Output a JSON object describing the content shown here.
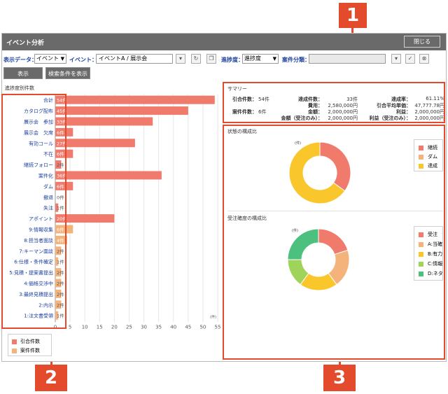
{
  "window": {
    "title": "イベント分析",
    "close_label": "閉じる"
  },
  "filters": {
    "display_data_label": "表示データ：",
    "display_data_value": "イベント",
    "event_label": "イベント：",
    "event_value": "イベントA / 展示会",
    "progress_label": "進捗度：",
    "progress_value": "進捗度",
    "case_category_label": "案件分類：",
    "case_category_value": ""
  },
  "actions": {
    "show_label": "表示",
    "show_conditions_label": "検索条件を表示"
  },
  "left_chart": {
    "section_title": "進捗度別件数",
    "legend": [
      {
        "name": "引合件数",
        "color": "#f07b6c"
      },
      {
        "name": "案件件数",
        "color": "#f5b37c"
      }
    ]
  },
  "chart_data": {
    "type": "bar",
    "orientation": "horizontal",
    "title": "進捗度別件数",
    "x_unit": "(件)",
    "xlim": [
      0,
      55
    ],
    "x_ticks": [
      0,
      5,
      10,
      15,
      20,
      25,
      30,
      35,
      40,
      45,
      50,
      55
    ],
    "grid": true,
    "legend_position": "bottom-left",
    "categories": [
      "合計",
      "カタログ配布",
      "展示会　参加",
      "展示会　欠席",
      "有効コール",
      "不在",
      "継続フォロー",
      "案件化",
      "ダム",
      "撤退",
      "失注",
      "アポイント",
      "9:情報収集",
      "8:担当者面談",
      "7:キーマン面談",
      "6:仕様・条件確定",
      "5:見積・提案書提出",
      "4:価格交渉中",
      "3:最終見積提出",
      "2:内示",
      "1:注文書受領"
    ],
    "series": [
      {
        "name": "引合件数",
        "color": "#f07b6c",
        "values": [
          54,
          45,
          33,
          6,
          27,
          6,
          2,
          36,
          6,
          0,
          1,
          20,
          0,
          0,
          0,
          0,
          0,
          0,
          0,
          0,
          0
        ]
      },
      {
        "name": "案件件数",
        "color": "#f5b37c",
        "values": [
          0,
          0,
          0,
          0,
          0,
          0,
          0,
          0,
          0,
          0,
          0,
          0,
          6,
          4,
          2,
          1,
          2,
          2,
          2,
          2,
          1
        ]
      }
    ],
    "data_labels": [
      "54件",
      "45件",
      "33件",
      "6件",
      "27件",
      "6件",
      "2件",
      "36件",
      "6件",
      "0件",
      "1件",
      "20件",
      "6件",
      "4件",
      "2件",
      "1件",
      "2件",
      "2件",
      "2件",
      "2件",
      "1件"
    ]
  },
  "summary": {
    "title": "サマリー",
    "items": [
      {
        "label": "引合件数：",
        "value": "54件"
      },
      {
        "label": "案件件数：",
        "value": "6件"
      },
      {
        "label": "達成件数：",
        "value": "33件"
      },
      {
        "label": "費用：",
        "value": "2,580,000円"
      },
      {
        "label": "金額：",
        "value": "2,000,000円"
      },
      {
        "label": "金額（受注のみ）：",
        "value": "2,000,000円"
      },
      {
        "label": "達成率：",
        "value": "61.11%"
      },
      {
        "label": "引合平均単価：",
        "value": "47,777.78円"
      },
      {
        "label": "利益：",
        "value": "2,000,000円"
      },
      {
        "label": "利益（受注のみ）：",
        "value": "2,000,000円"
      }
    ]
  },
  "status_pie": {
    "title": "状態の構成比",
    "unit": "(件)",
    "type": "donut",
    "slices": [
      {
        "name": "継続",
        "value": 35,
        "color": "#f07b6c"
      },
      {
        "name": "ダム",
        "value": 0,
        "color": "#f5b37c"
      },
      {
        "name": "達成",
        "value": 65,
        "color": "#f9c62b"
      }
    ],
    "legend_position": "right"
  },
  "order_pie": {
    "title": "受注確度の構成比",
    "unit": "(件)",
    "type": "donut",
    "slices": [
      {
        "name": "受注",
        "value": 20,
        "color": "#f07b6c"
      },
      {
        "name": "A:当確",
        "value": 20,
        "color": "#f5b37c"
      },
      {
        "name": "B:有力",
        "value": 20,
        "color": "#f9c62b"
      },
      {
        "name": "C:情報",
        "value": 15,
        "color": "#9fd35a"
      },
      {
        "name": "D:ネタ",
        "value": 25,
        "color": "#4cc07e"
      }
    ],
    "legend_position": "right"
  },
  "callouts": [
    "1",
    "2",
    "3"
  ],
  "colors": {
    "annotation": "#e44a2c",
    "titlebar": "#6a6a6a",
    "link_text": "#1a3fa0"
  }
}
